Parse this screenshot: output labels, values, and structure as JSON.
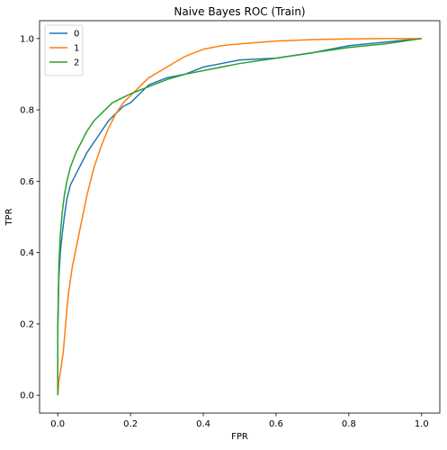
{
  "chart_data": {
    "type": "line",
    "title": "Naive Bayes ROC (Train)",
    "xlabel": "FPR",
    "ylabel": "TPR",
    "xlim": [
      -0.05,
      1.05
    ],
    "ylim": [
      -0.05,
      1.05
    ],
    "xticks": [
      "0.0",
      "0.2",
      "0.4",
      "0.6",
      "0.8",
      "1.0"
    ],
    "yticks": [
      "0.0",
      "0.2",
      "0.4",
      "0.6",
      "0.8",
      "1.0"
    ],
    "grid": false,
    "legend_position": "top-left",
    "series": [
      {
        "name": "0",
        "color": "#1f77b4",
        "x": [
          0.0,
          0.0,
          0.003,
          0.007,
          0.012,
          0.018,
          0.025,
          0.035,
          0.05,
          0.065,
          0.08,
          0.1,
          0.12,
          0.14,
          0.16,
          0.18,
          0.2,
          0.22,
          0.25,
          0.3,
          0.35,
          0.4,
          0.45,
          0.5,
          0.6,
          0.7,
          0.8,
          0.9,
          1.0
        ],
        "y": [
          0.0,
          0.18,
          0.33,
          0.4,
          0.45,
          0.5,
          0.55,
          0.59,
          0.62,
          0.65,
          0.68,
          0.71,
          0.74,
          0.77,
          0.79,
          0.81,
          0.82,
          0.84,
          0.87,
          0.89,
          0.9,
          0.92,
          0.93,
          0.94,
          0.945,
          0.96,
          0.98,
          0.99,
          1.0
        ]
      },
      {
        "name": "1",
        "color": "#ff7f0e",
        "x": [
          0.0,
          0.003,
          0.008,
          0.015,
          0.02,
          0.025,
          0.03,
          0.04,
          0.05,
          0.06,
          0.07,
          0.08,
          0.09,
          0.1,
          0.12,
          0.14,
          0.16,
          0.18,
          0.2,
          0.22,
          0.25,
          0.3,
          0.35,
          0.4,
          0.45,
          0.5,
          0.6,
          0.7,
          0.8,
          0.9,
          1.0
        ],
        "y": [
          0.0,
          0.04,
          0.07,
          0.12,
          0.18,
          0.24,
          0.29,
          0.36,
          0.41,
          0.46,
          0.51,
          0.56,
          0.6,
          0.64,
          0.7,
          0.75,
          0.79,
          0.82,
          0.84,
          0.86,
          0.89,
          0.92,
          0.95,
          0.97,
          0.98,
          0.985,
          0.993,
          0.997,
          0.999,
          1.0,
          1.0
        ]
      },
      {
        "name": "2",
        "color": "#2ca02c",
        "x": [
          0.0,
          0.0,
          0.003,
          0.007,
          0.012,
          0.018,
          0.025,
          0.035,
          0.05,
          0.065,
          0.08,
          0.1,
          0.12,
          0.15,
          0.18,
          0.2,
          0.25,
          0.3,
          0.35,
          0.4,
          0.5,
          0.6,
          0.7,
          0.8,
          0.9,
          1.0
        ],
        "y": [
          0.0,
          0.2,
          0.36,
          0.45,
          0.51,
          0.56,
          0.6,
          0.64,
          0.68,
          0.71,
          0.74,
          0.77,
          0.79,
          0.82,
          0.835,
          0.845,
          0.865,
          0.885,
          0.9,
          0.91,
          0.93,
          0.945,
          0.96,
          0.975,
          0.985,
          1.0
        ]
      }
    ]
  }
}
